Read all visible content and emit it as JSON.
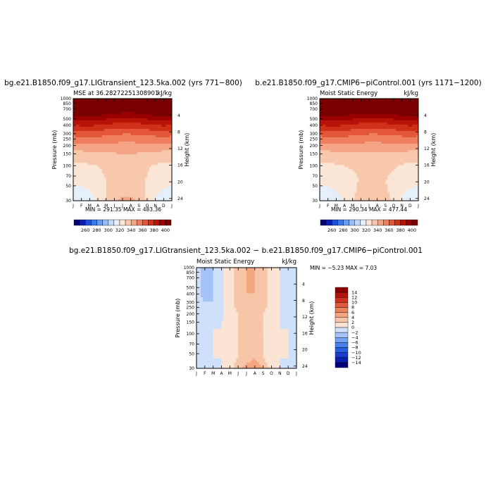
{
  "chart_data": [
    {
      "type": "heatmap",
      "title": "bg.e21.B1850.f09_g17.LIGtransient_123.5ka.002 (yrs 771−800)",
      "left_label": "MSE at 36.28272251308901",
      "right_label": "kJ/kg",
      "min_max": "MIN = 291.35  MAX = 483.36",
      "ylabel": "Pressure (mb)",
      "y2label": "Height (km)",
      "xticks": [
        "J",
        "F",
        "M",
        "A",
        "M",
        "J",
        "J",
        "A",
        "S",
        "O",
        "N",
        "D",
        "J"
      ],
      "yticks": [
        "30",
        "50",
        "70",
        "100",
        "150",
        "200",
        "250",
        "300",
        "400",
        "500",
        "700",
        "850",
        "1000"
      ],
      "y2ticks": [
        "24",
        "20",
        "16",
        "12",
        "8",
        "4"
      ],
      "ylim": [
        1000,
        30
      ],
      "months_x": [
        0,
        1,
        2,
        3,
        4,
        5,
        6,
        7,
        8,
        9,
        10,
        11,
        12
      ],
      "levels": [
        1000,
        850,
        700,
        500,
        400,
        300,
        250,
        200,
        150,
        100,
        70,
        50,
        30
      ],
      "values": [
        [
          312,
          312,
          316,
          322,
          332,
          338,
          342,
          342,
          338,
          330,
          320,
          314,
          312
        ],
        [
          314,
          314,
          318,
          322,
          330,
          337,
          340,
          340,
          336,
          328,
          320,
          316,
          314
        ],
        [
          318,
          318,
          320,
          324,
          330,
          335,
          338,
          338,
          335,
          328,
          322,
          319,
          318
        ],
        [
          322,
          322,
          323,
          326,
          330,
          334,
          336,
          336,
          334,
          329,
          325,
          323,
          322
        ],
        [
          325,
          325,
          326,
          328,
          331,
          334,
          335,
          335,
          333,
          330,
          327,
          326,
          325
        ],
        [
          328,
          328,
          329,
          330,
          332,
          334,
          335,
          335,
          333,
          331,
          329,
          328,
          328
        ],
        [
          331,
          331,
          332,
          333,
          334,
          335,
          336,
          336,
          335,
          333,
          332,
          331,
          331
        ],
        [
          336,
          336,
          337,
          338,
          339,
          339,
          340,
          340,
          339,
          338,
          337,
          336,
          336
        ],
        [
          346,
          346,
          347,
          347,
          347,
          346,
          346,
          346,
          346,
          347,
          347,
          346,
          346
        ],
        [
          363,
          364,
          364,
          364,
          362,
          361,
          360,
          360,
          361,
          362,
          363,
          364,
          363
        ],
        [
          383,
          384,
          384,
          383,
          381,
          379,
          377,
          377,
          379,
          381,
          383,
          384,
          383
        ],
        [
          403,
          404,
          404,
          403,
          401,
          399,
          397,
          397,
          399,
          401,
          403,
          404,
          403
        ],
        [
          430,
          430,
          430,
          430,
          430,
          430,
          430,
          430,
          430,
          430,
          430,
          430,
          430
        ]
      ],
      "levels_legend": [
        "260",
        "280",
        "300",
        "320",
        "340",
        "360",
        "380",
        "400"
      ]
    },
    {
      "type": "heatmap",
      "title": "b.e21.B1850.f09_g17.CMIP6−piControl.001 (yrs 1171−1200)",
      "left_label": "Moist Static Energy",
      "right_label": "kJ/kg",
      "min_max": "MIN = 290.34  MAX = 477.44",
      "ylabel": "Pressure (mb)",
      "y2label": "Height (km)",
      "xticks": [
        "J",
        "F",
        "M",
        "A",
        "M",
        "J",
        "J",
        "A",
        "S",
        "O",
        "N",
        "D",
        "J"
      ],
      "yticks": [
        "30",
        "50",
        "70",
        "100",
        "150",
        "200",
        "250",
        "300",
        "400",
        "500",
        "700",
        "850",
        "1000"
      ],
      "y2ticks": [
        "24",
        "20",
        "16",
        "12",
        "8",
        "4"
      ],
      "ylim": [
        1000,
        30
      ],
      "months_x": [
        0,
        1,
        2,
        3,
        4,
        5,
        6,
        7,
        8,
        9,
        10,
        11,
        12
      ],
      "levels": [
        1000,
        850,
        700,
        500,
        400,
        300,
        250,
        200,
        150,
        100,
        70,
        50,
        30
      ],
      "values": [
        [
          313,
          313,
          316,
          321,
          330,
          334,
          334,
          334,
          334,
          329,
          320,
          315,
          313
        ],
        [
          315,
          315,
          318,
          322,
          329,
          333,
          333,
          334,
          333,
          327,
          320,
          316,
          315
        ],
        [
          318,
          318,
          320,
          323,
          328,
          332,
          332,
          332,
          331,
          327,
          322,
          319,
          318
        ],
        [
          322,
          322,
          323,
          325,
          328,
          331,
          331,
          331,
          330,
          328,
          325,
          323,
          322
        ],
        [
          325,
          325,
          326,
          327,
          329,
          331,
          332,
          332,
          331,
          329,
          327,
          326,
          325
        ],
        [
          328,
          328,
          329,
          330,
          331,
          333,
          334,
          334,
          333,
          331,
          329,
          328,
          328
        ],
        [
          331,
          331,
          332,
          333,
          334,
          335,
          335,
          335,
          334,
          333,
          332,
          331,
          331
        ],
        [
          336,
          336,
          337,
          338,
          338,
          339,
          339,
          339,
          339,
          338,
          337,
          336,
          336
        ],
        [
          346,
          346,
          347,
          347,
          347,
          346,
          346,
          346,
          346,
          347,
          347,
          346,
          346
        ],
        [
          363,
          364,
          364,
          364,
          362,
          361,
          360,
          360,
          361,
          362,
          363,
          364,
          363
        ],
        [
          383,
          384,
          384,
          383,
          381,
          379,
          378,
          378,
          379,
          381,
          383,
          384,
          383
        ],
        [
          403,
          404,
          404,
          403,
          401,
          399,
          398,
          398,
          399,
          401,
          403,
          404,
          403
        ],
        [
          430,
          430,
          430,
          430,
          430,
          430,
          430,
          430,
          430,
          430,
          430,
          430,
          430
        ]
      ],
      "levels_legend": [
        "260",
        "280",
        "300",
        "320",
        "340",
        "360",
        "380",
        "400"
      ]
    },
    {
      "type": "heatmap",
      "title": "bg.e21.B1850.f09_g17.LIGtransient_123.5ka.002 − b.e21.B1850.f09_g17.CMIP6−piControl.001",
      "left_label": "Moist Static Energy",
      "right_label": "kJ/kg",
      "min_max": "MIN = −5.23  MAX =   7.03",
      "ylabel": "Pressure (mb)",
      "y2label": "Height (km)",
      "xticks": [
        "J",
        "F",
        "M",
        "A",
        "M",
        "J",
        "J",
        "A",
        "S",
        "O",
        "N",
        "D",
        "J"
      ],
      "yticks": [
        "30",
        "50",
        "70",
        "100",
        "150",
        "200",
        "250",
        "300",
        "400",
        "500",
        "700",
        "850",
        "1000"
      ],
      "y2ticks": [
        "24",
        "20",
        "16",
        "12",
        "8",
        "4"
      ],
      "ylim": [
        1000,
        30
      ],
      "months_x": [
        0,
        1,
        2,
        3,
        4,
        5,
        6,
        7,
        8,
        9,
        10,
        11,
        12
      ],
      "levels": [
        1000,
        850,
        700,
        500,
        400,
        300,
        250,
        200,
        150,
        100,
        70,
        50,
        30
      ],
      "values": [
        [
          -1,
          -1,
          0,
          0,
          1,
          3,
          5,
          6,
          4,
          1,
          0,
          -1,
          -1
        ],
        [
          -1,
          -1,
          -0.5,
          0,
          1,
          3,
          4,
          5,
          3,
          1,
          0,
          -0.5,
          -1
        ],
        [
          -0.5,
          -0.5,
          0,
          0,
          1,
          2,
          3,
          4,
          2,
          1,
          0,
          0,
          -0.5
        ],
        [
          -0.5,
          -0.5,
          0,
          0,
          1,
          2,
          3,
          3,
          2,
          1,
          0,
          0,
          -0.5
        ],
        [
          -0.5,
          -0.5,
          0,
          0,
          1,
          2,
          3,
          3,
          2,
          1,
          0,
          0,
          -0.5
        ],
        [
          -0.5,
          -0.5,
          0,
          0,
          1,
          2,
          3,
          3,
          2,
          1,
          0,
          0,
          -0.5
        ],
        [
          -0.5,
          -0.5,
          0,
          0,
          1,
          2,
          2,
          2,
          2,
          1,
          0,
          0,
          -0.5
        ],
        [
          -0.5,
          -1,
          -1,
          0,
          1,
          2,
          3,
          3,
          2,
          1,
          0,
          -0.5,
          -0.5
        ],
        [
          -1,
          -2,
          -2,
          -0.5,
          1,
          2,
          3,
          3,
          2,
          1,
          0,
          -0.5,
          -1
        ],
        [
          -1,
          -2,
          -2,
          -0.5,
          1,
          3,
          3,
          3,
          3,
          1,
          0,
          -0.5,
          -1
        ],
        [
          -1,
          -3,
          -2,
          -0.5,
          1,
          3,
          4,
          4,
          3,
          1,
          0,
          -0.5,
          -1
        ],
        [
          -1,
          -3,
          -2,
          -0.5,
          1,
          3,
          4,
          4,
          3,
          1,
          0,
          -0.5,
          -1
        ],
        [
          -1,
          -3,
          -2,
          -0.5,
          1,
          3,
          4,
          4,
          3,
          1,
          0,
          -0.5,
          -1
        ]
      ],
      "levels_legend": [
        "14",
        "12",
        "10",
        "8",
        "6",
        "4",
        "2",
        "0",
        "−2",
        "−4",
        "−6",
        "−8",
        "−10",
        "−12",
        "−14"
      ]
    }
  ],
  "colors": {
    "mse_scale": [
      "#03007a",
      "#0a1fb0",
      "#1e4fd8",
      "#3a78e8",
      "#6a9df0",
      "#98bdf4",
      "#c4daf8",
      "#e6f0fb",
      "#fbe6d6",
      "#f8c8ad",
      "#f4a585",
      "#ef7f5e",
      "#e45638",
      "#cf3018",
      "#b81308",
      "#990000",
      "#7a0000"
    ],
    "diff_scale": [
      "#03007a",
      "#0a1fb0",
      "#1a3ccc",
      "#2a5ee0",
      "#4a80ec",
      "#76a2f2",
      "#a4c3f6",
      "#cfe1fa",
      "#fbe4d4",
      "#f7c6a8",
      "#f3a680",
      "#ee845c",
      "#e25a3a",
      "#cc331d",
      "#b0150b",
      "#8b0000"
    ]
  }
}
